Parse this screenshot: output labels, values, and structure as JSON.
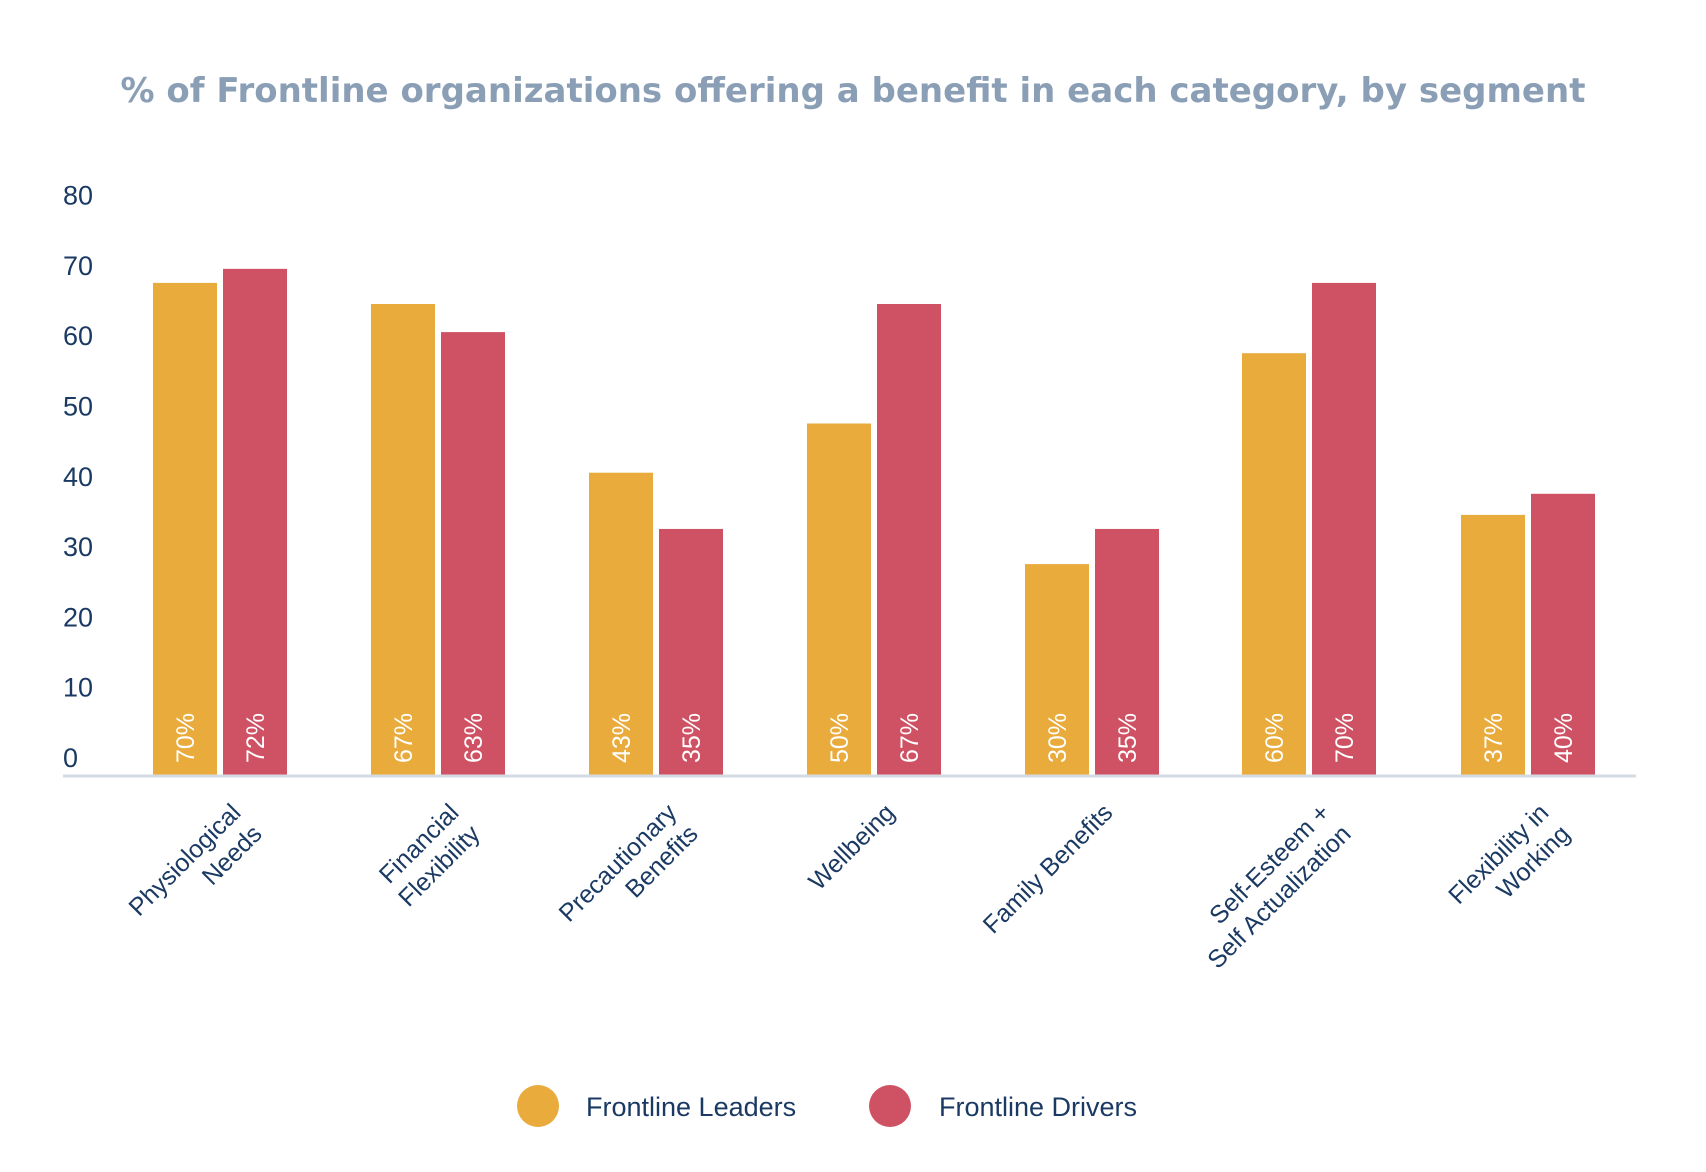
{
  "chart_data": {
    "type": "bar",
    "title": "% of Frontline organizations offering a benefit in each category, by segment",
    "categories": [
      [
        "Physiological",
        "Needs"
      ],
      [
        "Financial",
        "Flexibility"
      ],
      [
        "Precautionary",
        "Benefits"
      ],
      [
        "Wellbeing"
      ],
      [
        "Family Benefits"
      ],
      [
        "Self-Esteem +",
        "Self Actualization"
      ],
      [
        "Flexibility in",
        "Working"
      ]
    ],
    "series": [
      {
        "name": "Frontline Leaders",
        "color": "#e8ab3c",
        "values": [
          70,
          67,
          43,
          50,
          30,
          60,
          37
        ],
        "labels": [
          "70%",
          "67%",
          "43%",
          "50%",
          "30%",
          "60%",
          "37%"
        ]
      },
      {
        "name": "Frontline Drivers",
        "color": "#cf5264",
        "values": [
          72,
          63,
          35,
          67,
          35,
          70,
          40
        ],
        "labels": [
          "72%",
          "63%",
          "35%",
          "67%",
          "35%",
          "70%",
          "40%"
        ]
      }
    ],
    "ylim": [
      0,
      80
    ],
    "yticks": [
      "0",
      "10",
      "20",
      "30",
      "40",
      "50",
      "60",
      "70",
      "80"
    ],
    "xlabel": "",
    "ylabel": "",
    "grid": false,
    "legend_position": "bottom"
  }
}
